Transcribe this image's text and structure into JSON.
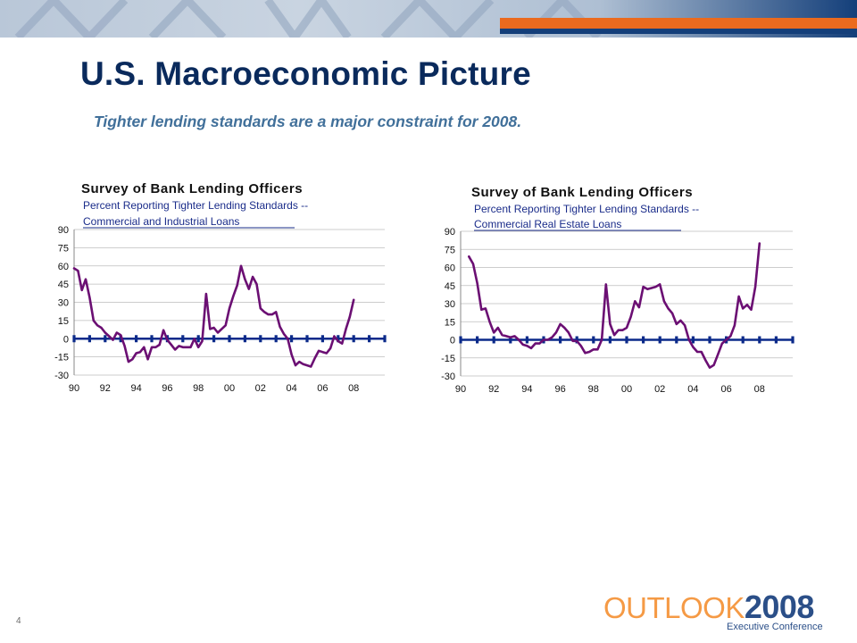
{
  "slide": {
    "title": "U.S. Macroeconomic Picture",
    "subtitle": "Tighter lending standards are a major constraint for 2008.",
    "page_number": "4"
  },
  "logo": {
    "word": "OUTLOOK",
    "year": "2008",
    "tagline": "Executive Conference"
  },
  "colors": {
    "title": "#0a2a5c",
    "subtitle": "#41709a",
    "series_line": "#6b0f73",
    "zero_line": "#0b2a8a",
    "banner_dark": "#143f7a",
    "banner_orange": "#ea6a1f",
    "logo_orange": "#f59a45",
    "logo_blue": "#2b4f88"
  },
  "chart_data": [
    {
      "type": "line",
      "title": "Survey of Bank Lending Officers",
      "subtitle_lines": [
        "Percent Reporting Tighter Lending Standards --",
        "Commercial and Industrial Loans"
      ],
      "ylim": [
        -30,
        90
      ],
      "yticks": [
        -30,
        -15,
        0,
        15,
        30,
        45,
        60,
        75,
        90
      ],
      "xlim": [
        1990,
        2010
      ],
      "xticks": [
        1990,
        1992,
        1994,
        1996,
        1998,
        2000,
        2002,
        2004,
        2006,
        2008
      ],
      "xtick_labels": [
        "90",
        "92",
        "94",
        "96",
        "98",
        "00",
        "02",
        "04",
        "06",
        "08"
      ],
      "grid": true,
      "series": [
        {
          "x": [
            1990.0,
            1990.25,
            1990.5,
            1990.75,
            1991.0,
            1991.25,
            1991.5,
            1991.75,
            1992.0,
            1992.25,
            1992.5,
            1992.75,
            1993.0,
            1993.25,
            1993.5,
            1993.75,
            1994.0,
            1994.25,
            1994.5,
            1994.75,
            1995.0,
            1995.25,
            1995.5,
            1995.75,
            1996.0,
            1996.25,
            1996.5,
            1996.75,
            1997.0,
            1997.25,
            1997.5,
            1997.75,
            1998.0,
            1998.25,
            1998.5,
            1998.75,
            1999.0,
            1999.25,
            1999.5,
            1999.75,
            2000.0,
            2000.25,
            2000.5,
            2000.75,
            2001.0,
            2001.25,
            2001.5,
            2001.75,
            2002.0,
            2002.25,
            2002.5,
            2002.75,
            2003.0,
            2003.25,
            2003.5,
            2003.75,
            2004.0,
            2004.25,
            2004.5,
            2004.75,
            2005.0,
            2005.25,
            2005.5,
            2005.75,
            2006.0,
            2006.25,
            2006.5,
            2006.75,
            2007.0,
            2007.25,
            2007.5,
            2007.75,
            2008.0
          ],
          "values": [
            58,
            56,
            40,
            49,
            34,
            15,
            11,
            9,
            5,
            2,
            -1,
            5,
            3,
            -6,
            -19,
            -17,
            -12,
            -11,
            -7,
            -17,
            -7,
            -7,
            -5,
            7,
            -1,
            -5,
            -9,
            -6,
            -7,
            -7,
            -7,
            0,
            -7,
            -2,
            37,
            8,
            9,
            5,
            8,
            11,
            25,
            35,
            44,
            60,
            49,
            41,
            51,
            45,
            25,
            22,
            20,
            20,
            22,
            10,
            4,
            0,
            -13,
            -22,
            -19,
            -21,
            -22,
            -23,
            -16,
            -10,
            -11,
            -12,
            -8,
            2,
            -2,
            -4,
            8,
            18,
            32
          ]
        }
      ]
    },
    {
      "type": "line",
      "title": "Survey of Bank Lending Officers",
      "subtitle_lines": [
        "Percent Reporting Tighter Lending Standards --",
        "Commercial Real Estate Loans"
      ],
      "ylim": [
        -30,
        90
      ],
      "yticks": [
        -30,
        -15,
        0,
        15,
        30,
        45,
        60,
        75,
        90
      ],
      "xlim": [
        1990,
        2010
      ],
      "xticks": [
        1990,
        1992,
        1994,
        1996,
        1998,
        2000,
        2002,
        2004,
        2006,
        2008
      ],
      "xtick_labels": [
        "90",
        "92",
        "94",
        "96",
        "98",
        "00",
        "02",
        "04",
        "06",
        "08"
      ],
      "grid": true,
      "series": [
        {
          "x": [
            1990.5,
            1990.75,
            1991.0,
            1991.25,
            1991.5,
            1991.75,
            1992.0,
            1992.25,
            1992.5,
            1992.75,
            1993.0,
            1993.25,
            1993.5,
            1993.75,
            1994.0,
            1994.25,
            1994.5,
            1994.75,
            1995.0,
            1995.25,
            1995.5,
            1995.75,
            1996.0,
            1996.25,
            1996.5,
            1996.75,
            1997.0,
            1997.25,
            1997.5,
            1997.75,
            1998.0,
            1998.25,
            1998.5,
            1998.75,
            1999.0,
            1999.25,
            1999.5,
            1999.75,
            2000.0,
            2000.25,
            2000.5,
            2000.75,
            2001.0,
            2001.25,
            2001.5,
            2001.75,
            2002.0,
            2002.25,
            2002.5,
            2002.75,
            2003.0,
            2003.25,
            2003.5,
            2003.75,
            2004.0,
            2004.25,
            2004.5,
            2004.75,
            2005.0,
            2005.25,
            2005.5,
            2005.75,
            2006.0,
            2006.25,
            2006.5,
            2006.75,
            2007.0,
            2007.25,
            2007.5,
            2007.75,
            2008.0
          ],
          "values": [
            69,
            63,
            47,
            25,
            26,
            15,
            6,
            10,
            4,
            3,
            2,
            3,
            0,
            -4,
            -5,
            -7,
            -3,
            -3,
            0,
            0,
            2,
            6,
            13,
            10,
            6,
            -1,
            -1,
            -5,
            -11,
            -10,
            -8,
            -8,
            0,
            46,
            13,
            4,
            8,
            8,
            10,
            19,
            32,
            27,
            44,
            42,
            43,
            44,
            46,
            32,
            26,
            22,
            13,
            16,
            12,
            0,
            -6,
            -10,
            -10,
            -17,
            -23,
            -21,
            -12,
            -3,
            0,
            3,
            12,
            36,
            26,
            29,
            25,
            44,
            80
          ]
        }
      ]
    }
  ]
}
